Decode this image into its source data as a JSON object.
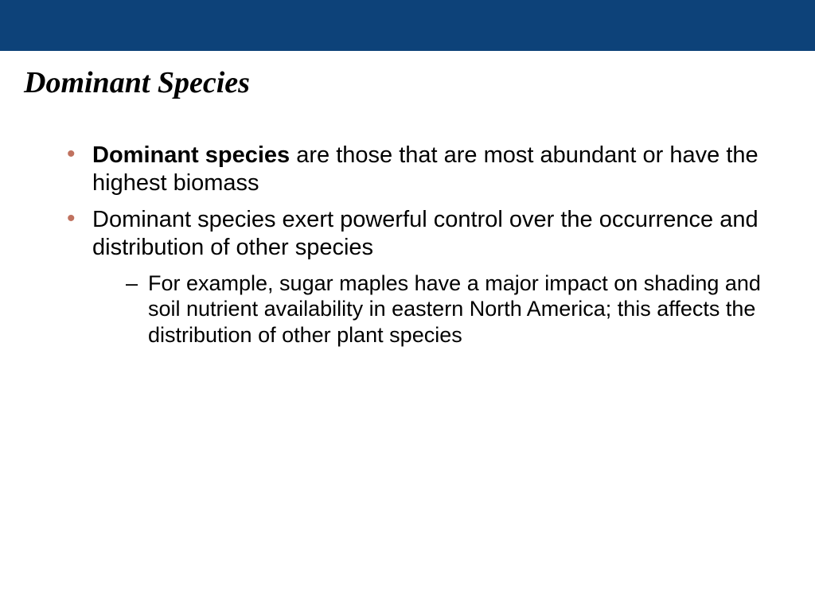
{
  "colors": {
    "header_bar": "#0d4279",
    "background": "#ffffff",
    "bullet_level1": "#c0725f",
    "bullet_level2": "#000000",
    "title_text": "#000000",
    "body_text": "#000000"
  },
  "typography": {
    "title_font": "Times New Roman",
    "title_fontsize": 38,
    "title_style": "italic bold",
    "body_font": "Arial",
    "body_fontsize_level1": 29,
    "body_fontsize_level2": 27
  },
  "slide": {
    "title": "Dominant Species",
    "bullets": [
      {
        "bold_term": "Dominant species",
        "rest": " are those that are most abundant or have the highest biomass"
      },
      {
        "text": "Dominant species exert powerful control over the occurrence and distribution of other species",
        "sub": [
          {
            "text": "For example, sugar maples have a major impact on shading and soil nutrient availability in eastern North America; this affects the distribution of other plant species"
          }
        ]
      }
    ]
  }
}
